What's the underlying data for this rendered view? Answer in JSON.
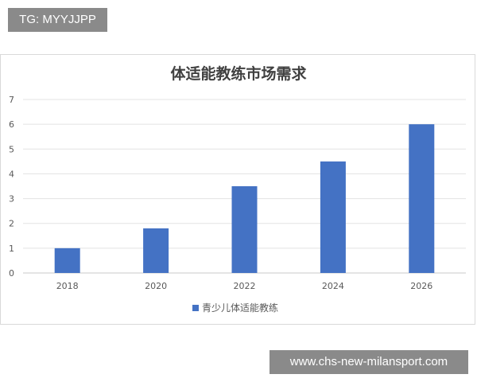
{
  "watermark_top": "TG: MYYJJPP",
  "watermark_bottom": "www.chs-new-milansport.com",
  "colors": {
    "bar": "#4472c4",
    "grid": "#e3e3e3",
    "text": "#595959",
    "title": "#404040"
  },
  "chart_data": {
    "type": "bar",
    "title": "体适能教练市场需求",
    "categories": [
      "2018",
      "2020",
      "2022",
      "2024",
      "2026"
    ],
    "series": [
      {
        "name": "青少儿体适能教练",
        "values": [
          1,
          1.8,
          3.5,
          4.5,
          6
        ]
      }
    ],
    "ylim": [
      0,
      7
    ],
    "yticks": [
      "0",
      "1",
      "2",
      "3",
      "4",
      "5",
      "6",
      "7"
    ],
    "grid": true,
    "legend": "bottom"
  }
}
